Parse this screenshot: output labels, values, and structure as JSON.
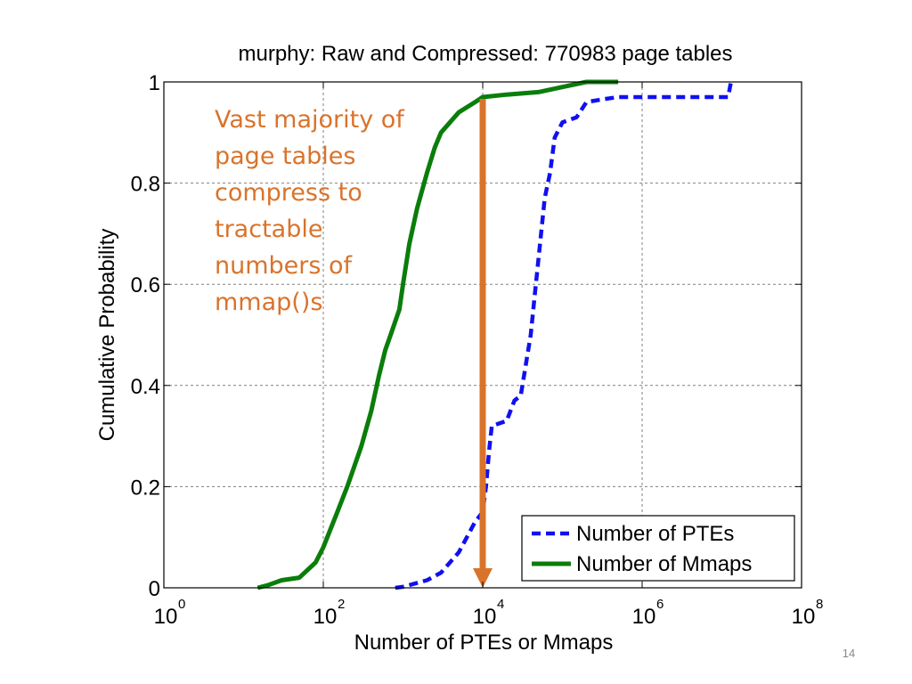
{
  "slide": {
    "page_number": "14"
  },
  "colors": {
    "pte_series": "#1010f0",
    "mmap_series": "#0a7d0a",
    "annotation": "#d9732b",
    "grid": "#808080"
  },
  "chart_data": {
    "type": "line",
    "title": "murphy: Raw and Compressed: 770983 page tables",
    "xlabel": "Number of PTEs or Mmaps",
    "ylabel": "Cumulative Probability",
    "xscale": "log",
    "xlim": [
      1,
      100000000
    ],
    "ylim": [
      0,
      1
    ],
    "grid": true,
    "legend_position": "bottom-right",
    "x_ticks": [
      {
        "base": "10",
        "exp": "0",
        "value": 1
      },
      {
        "base": "10",
        "exp": "2",
        "value": 100
      },
      {
        "base": "10",
        "exp": "4",
        "value": 10000
      },
      {
        "base": "10",
        "exp": "6",
        "value": 1000000
      },
      {
        "base": "10",
        "exp": "8",
        "value": 100000000
      }
    ],
    "y_ticks": [
      {
        "label": "0",
        "value": 0
      },
      {
        "label": "0.2",
        "value": 0.2
      },
      {
        "label": "0.4",
        "value": 0.4
      },
      {
        "label": "0.6",
        "value": 0.6
      },
      {
        "label": "0.8",
        "value": 0.8
      },
      {
        "label": "1",
        "value": 1
      }
    ],
    "series": [
      {
        "name": "Number of PTEs",
        "style": "dashed",
        "color": "#1010f0",
        "x": [
          800,
          1000,
          2000,
          3000,
          5000,
          8000,
          10000,
          11000,
          12000,
          13000,
          20000,
          25000,
          30000,
          40000,
          45000,
          50000,
          60000,
          70000,
          80000,
          100000,
          150000,
          200000,
          300000,
          500000,
          1000000,
          12000000,
          13000000
        ],
        "y": [
          0,
          0.002,
          0.015,
          0.03,
          0.07,
          0.13,
          0.15,
          0.2,
          0.27,
          0.32,
          0.33,
          0.37,
          0.38,
          0.5,
          0.58,
          0.65,
          0.77,
          0.82,
          0.89,
          0.92,
          0.93,
          0.96,
          0.965,
          0.97,
          0.97,
          0.97,
          1.0
        ]
      },
      {
        "name": "Number of Mmaps",
        "style": "solid",
        "color": "#0a7d0a",
        "x": [
          15,
          20,
          30,
          50,
          80,
          100,
          150,
          200,
          300,
          400,
          500,
          600,
          700,
          900,
          1000,
          1200,
          1500,
          2000,
          2500,
          3000,
          5000,
          8000,
          10000,
          20000,
          50000,
          100000,
          200000,
          500000
        ],
        "y": [
          0,
          0.005,
          0.015,
          0.02,
          0.05,
          0.08,
          0.15,
          0.2,
          0.28,
          0.35,
          0.42,
          0.47,
          0.5,
          0.55,
          0.6,
          0.68,
          0.75,
          0.82,
          0.87,
          0.9,
          0.94,
          0.96,
          0.97,
          0.975,
          0.98,
          0.99,
          1.0,
          1.0
        ]
      }
    ],
    "annotations": [
      {
        "text_lines": [
          "Vast majority of",
          "page tables",
          "compress to",
          "tractable",
          "numbers of",
          "mmap()s"
        ],
        "arrow": {
          "x": 10000,
          "y_from": 0.97,
          "y_to": 0
        }
      }
    ]
  }
}
